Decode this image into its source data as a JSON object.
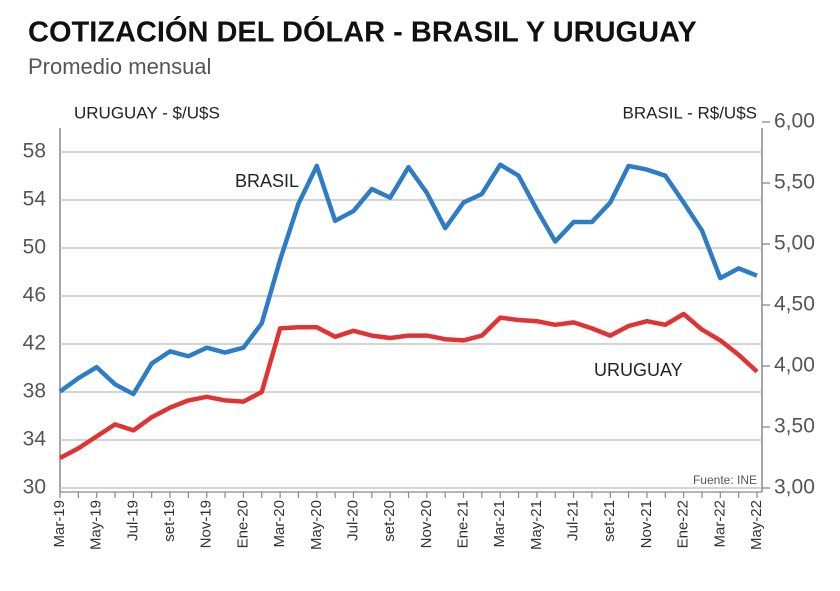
{
  "chart_data": {
    "type": "line",
    "title": "COTIZACIÓN DEL DÓLAR - BRASIL Y URUGUAY",
    "subtitle": "Promedio mensual",
    "y_label": "URUGUAY - $/U$S",
    "y2_label": "BRASIL - R$/U$S",
    "source": "Fuente: INE",
    "categories": [
      "Mar-19",
      null,
      "May-19",
      null,
      "Jul-19",
      null,
      "set-19",
      null,
      "Nov-19",
      null,
      "Ene-20",
      null,
      "Mar-20",
      null,
      "May-20",
      null,
      "Jul-20",
      null,
      "set-20",
      null,
      "Nov-20",
      null,
      "Ene-21",
      null,
      "Mar-21",
      null,
      "May-21",
      null,
      "Jul-21",
      null,
      "set-21",
      null,
      "Nov-21",
      null,
      "Ene-22",
      null,
      "Mar-22",
      null,
      "May-22"
    ],
    "ylim": [
      30,
      60.5
    ],
    "yticks": [
      30,
      34,
      38,
      42,
      46,
      50,
      54,
      58
    ],
    "y2lim": [
      3,
      6
    ],
    "y2ticks": [
      {
        "value": 3,
        "label": "3,00"
      },
      {
        "value": 3.5,
        "label": "3,50"
      },
      {
        "value": 4,
        "label": "4,00"
      },
      {
        "value": 4.5,
        "label": "4,50"
      },
      {
        "value": 5,
        "label": "5,00"
      },
      {
        "value": 5.5,
        "label": "5,50"
      },
      {
        "value": 6,
        "label": "6,00"
      }
    ],
    "grid": true,
    "series": [
      {
        "name": "URUGUAY",
        "color": "#e03434",
        "values": [
          32.5,
          33.3,
          34.3,
          35.3,
          34.8,
          35.9,
          36.7,
          37.3,
          37.6,
          37.3,
          37.2,
          38.0,
          43.3,
          43.4,
          43.4,
          42.6,
          43.1,
          42.7,
          42.5,
          42.7,
          42.7,
          42.4,
          42.3,
          42.7,
          44.2,
          44.0,
          43.9,
          43.6,
          43.8,
          43.3,
          42.7,
          43.5,
          43.9,
          43.6,
          44.5,
          43.2,
          42.3,
          41.1,
          39.7
        ]
      },
      {
        "name": "BRASIL",
        "color": "#2e7cc4",
        "axis": "y2",
        "values": [
          3.79,
          3.9,
          3.99,
          3.85,
          3.77,
          4.02,
          4.12,
          4.08,
          4.15,
          4.11,
          4.15,
          4.35,
          4.87,
          5.33,
          5.64,
          5.19,
          5.27,
          5.45,
          5.38,
          5.63,
          5.42,
          5.13,
          5.34,
          5.41,
          5.65,
          5.56,
          5.28,
          5.02,
          5.18,
          5.18,
          5.34,
          5.64,
          5.61,
          5.56,
          5.34,
          5.11,
          4.72,
          4.8,
          4.74
        ]
      }
    ]
  }
}
